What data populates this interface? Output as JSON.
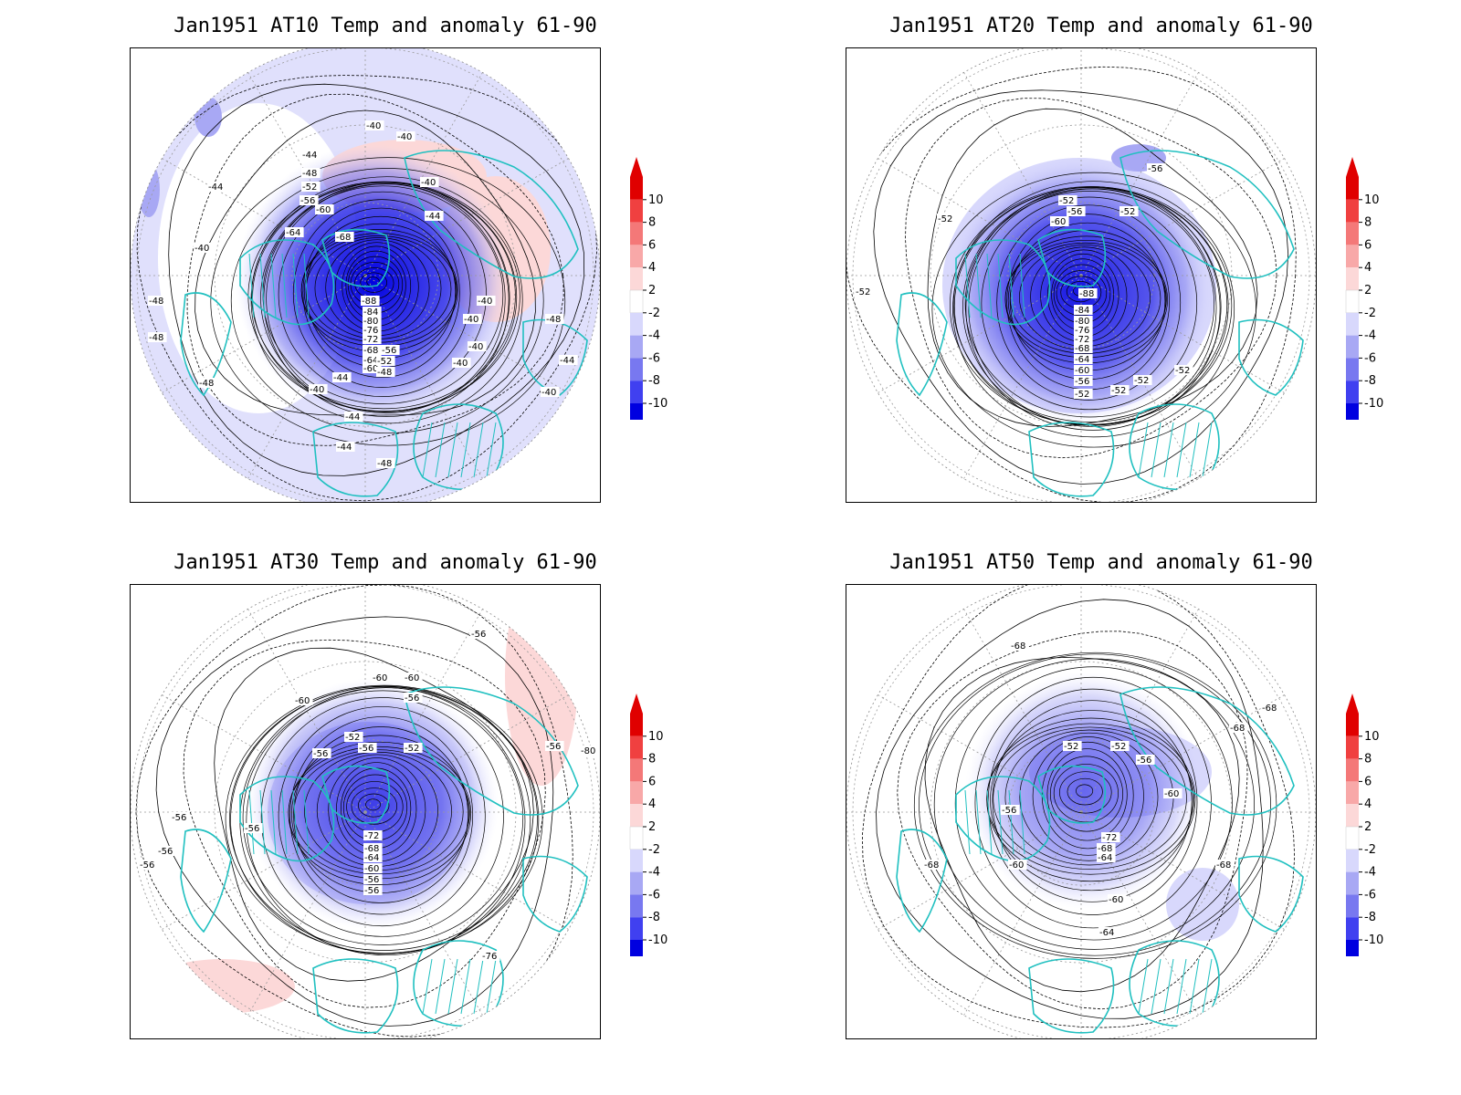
{
  "panels": [
    {
      "id": "at10",
      "title": "Jan1951 AT10 Temp and anomaly 61-90",
      "contour_labels": [
        "-40",
        "-40",
        "-44",
        "-48",
        "-52",
        "-56",
        "-60",
        "-64",
        "-68",
        "-44",
        "-40",
        "-44",
        "-40",
        "-48",
        "-88",
        "-84",
        "-80",
        "-76",
        "-72",
        "-68",
        "-64",
        "-60",
        "-56",
        "-52",
        "-48",
        "-44",
        "-40",
        "-40",
        "-40",
        "-40",
        "-40",
        "-44",
        "-44",
        "-48",
        "-48",
        "-48",
        "-48",
        "-44",
        "-40"
      ],
      "anomaly": "strong_negative_polar",
      "vortex_strength": 1.0
    },
    {
      "id": "at20",
      "title": "Jan1951 AT20 Temp and anomaly 61-90",
      "contour_labels": [
        "-56",
        "-52",
        "-56",
        "-60",
        "-52",
        "-52",
        "-52",
        "-88",
        "-84",
        "-80",
        "-76",
        "-72",
        "-68",
        "-64",
        "-60",
        "-56",
        "-52",
        "-52",
        "-52",
        "-52"
      ],
      "anomaly": "strong_negative_polar",
      "vortex_strength": 0.9
    },
    {
      "id": "at30",
      "title": "Jan1951 AT30 Temp and anomaly 61-90",
      "contour_labels": [
        "-56",
        "-60",
        "-60",
        "-60",
        "-56",
        "-52",
        "-56",
        "-52",
        "-56",
        "-56",
        "-56",
        "-56",
        "-56",
        "-56",
        "-80",
        "-76",
        "-72",
        "-68",
        "-64",
        "-60",
        "-56",
        "-56"
      ],
      "anomaly": "moderate_negative_polar",
      "vortex_strength": 0.7
    },
    {
      "id": "at50",
      "title": "Jan1951 AT50 Temp and anomaly 61-90",
      "contour_labels": [
        "-68",
        "-68",
        "-68",
        "-52",
        "-52",
        "-56",
        "-60",
        "-56",
        "-68",
        "-72",
        "-68",
        "-60",
        "-64",
        "-60",
        "-64",
        "-68"
      ],
      "anomaly": "weak_negative_polar",
      "vortex_strength": 0.5
    }
  ],
  "colorbar": {
    "labels": [
      "10",
      "8",
      "6",
      "4",
      "2",
      "-2",
      "-4",
      "-6",
      "-8",
      "-10"
    ],
    "colors": [
      "#e00000",
      "#f04040",
      "#f47878",
      "#f8a8a8",
      "#fcd8d8",
      "#ffffff",
      "#d8d8fc",
      "#a8a8f4",
      "#7878f0",
      "#4040f0",
      "#0000e0"
    ]
  },
  "colors": {
    "coastline": "#20c0c0",
    "contour": "#000000",
    "grid": "#999999"
  }
}
